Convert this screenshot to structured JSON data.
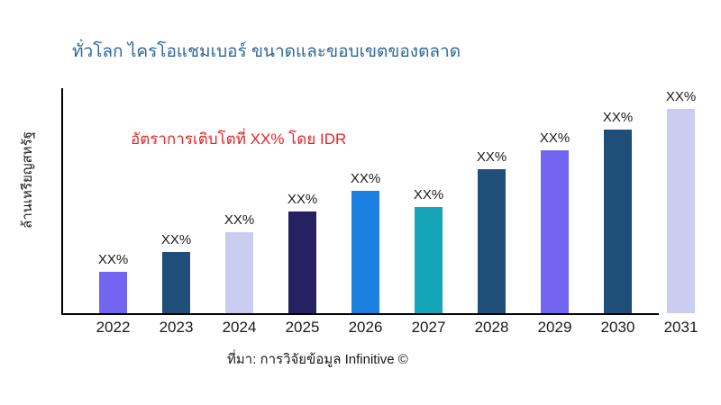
{
  "title": "ทั่วโลก ไครโอแชมเบอร์ ขนาดและขอบเขตของตลาด",
  "annotation": "อัตราการเติบโตที่ XX% โดย IDR",
  "source": "ที่มา: การวิจัยข้อมูล Infinitive ©",
  "colors": {
    "title": "#2E6799",
    "annotation": "#E42528",
    "axis": "#000000",
    "text": "#1A1A1A",
    "background": "#FFFFFF"
  },
  "chart_data": {
    "type": "bar",
    "title": "ทั่วโลก ไครโอแชมเบอร์ ขนาดและขอบเขตของตลาด",
    "xlabel": "",
    "ylabel": "ล้านเหรียญสหรัฐ",
    "categories": [
      "2022",
      "2023",
      "2024",
      "2025",
      "2026",
      "2027",
      "2028",
      "2029",
      "2030",
      "2031"
    ],
    "values": [
      46,
      68,
      90,
      113,
      136,
      118,
      160,
      181,
      204,
      227
    ],
    "values_note": "ค่าจริงถูกปิดบังเป็น XX% — ตัวเลขคือความสูงแท่งสัมพัทธ์ (px) ที่ประมาณจากภาพ",
    "bar_labels": [
      "XX%",
      "XX%",
      "XX%",
      "XX%",
      "XX%",
      "XX%",
      "XX%",
      "XX%",
      "XX%",
      "XX%"
    ],
    "bar_colors": [
      "#7265EF",
      "#1F4E79",
      "#CBCDF0",
      "#262262",
      "#1B80E0",
      "#15A5B8",
      "#1F4E79",
      "#7265EF",
      "#1F4E79",
      "#CBCDF0"
    ],
    "grid": false,
    "legend": false,
    "annotation": "อัตราการเติบโตที่ XX% โดย IDR"
  }
}
